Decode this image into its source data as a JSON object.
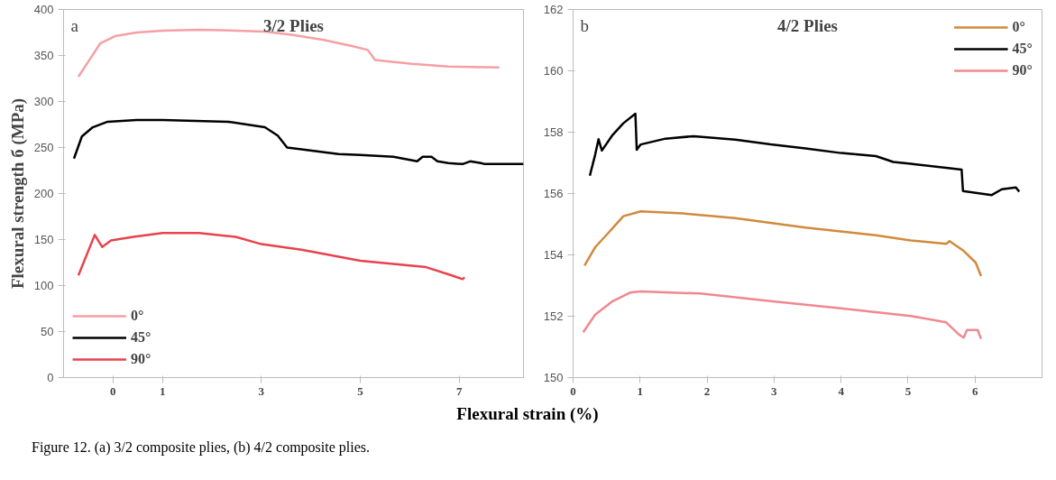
{
  "chart_data": [
    {
      "type": "line",
      "title": "3/2 Plies",
      "ylabel": "Flexural strength б (MPa)",
      "xlabel": "Flexural strain (%)",
      "annotations": [
        "a"
      ],
      "xlim": [
        -1,
        8.3
      ],
      "xticks": [
        0,
        1,
        3,
        5,
        7
      ],
      "ylim": [
        0,
        400
      ],
      "yticks": [
        0,
        50,
        100,
        150,
        200,
        250,
        300,
        350,
        400
      ],
      "legend": "bottom left",
      "series": [
        {
          "name": "0°",
          "color": "#f4a0a4",
          "x": [
            -0.7,
            -0.48,
            -0.26,
            0.04,
            0.48,
            1.0,
            1.74,
            2.48,
            3.07,
            3.67,
            4.26,
            4.85,
            5.15,
            5.3,
            6.04,
            6.78,
            7.81
          ],
          "values": [
            327,
            345,
            363,
            371,
            375,
            377,
            378,
            377,
            376,
            372,
            367,
            360,
            356,
            345,
            341,
            338,
            337
          ]
        },
        {
          "name": "45°",
          "color": "#000000",
          "x": [
            -0.79,
            -0.63,
            -0.41,
            -0.11,
            0.48,
            1.0,
            2.33,
            3.07,
            3.33,
            3.52,
            3.81,
            4.56,
            5.0,
            5.67,
            6.15,
            6.26,
            6.44,
            6.56,
            6.78,
            7.07,
            7.22,
            7.44,
            7.52,
            8.3
          ],
          "values": [
            238,
            262,
            272,
            278,
            280,
            280,
            278,
            272,
            263,
            250,
            248,
            243,
            242,
            240,
            235,
            240,
            240,
            235,
            233,
            232,
            235,
            233,
            232,
            232
          ]
        },
        {
          "name": "90°",
          "color": "#e8434e",
          "x": [
            -0.7,
            -0.37,
            -0.22,
            -0.04,
            0.41,
            1.0,
            1.74,
            2.48,
            3.0,
            3.81,
            5.0,
            6.33,
            6.85,
            7.07,
            7.11
          ],
          "values": [
            111,
            155,
            142,
            149,
            153,
            157,
            157,
            153,
            145,
            139,
            127,
            120,
            111,
            107,
            109
          ]
        }
      ]
    },
    {
      "type": "line",
      "title": "4/2 Plies",
      "annotations": [
        "b",
        "Figure 12. (a) 3/2 composite plies, (b) 4/2 composite plies."
      ],
      "xlim": [
        0,
        7
      ],
      "xticks": [
        0,
        1,
        2,
        3,
        4,
        5,
        6
      ],
      "ylim": [
        150,
        162
      ],
      "yticks": [
        150,
        152,
        154,
        156,
        158,
        160,
        162
      ],
      "legend": "top right",
      "series": [
        {
          "name": "0°",
          "color": "#d08a3c",
          "x": [
            0.17,
            0.33,
            0.54,
            0.75,
            1.01,
            1.64,
            2.42,
            3.47,
            4.52,
            5.04,
            5.57,
            5.62,
            5.83,
            6.01,
            6.09
          ],
          "values": [
            153.65,
            154.25,
            154.75,
            155.26,
            155.42,
            155.35,
            155.2,
            154.89,
            154.64,
            154.47,
            154.36,
            154.45,
            154.13,
            153.75,
            153.31
          ]
        },
        {
          "name": "45°",
          "color": "#000000",
          "x": [
            0.25,
            0.33,
            0.38,
            0.43,
            0.59,
            0.75,
            0.93,
            0.95,
            1.01,
            1.38,
            1.8,
            2.42,
            2.95,
            3.47,
            4.0,
            4.52,
            4.78,
            5.04,
            5.57,
            5.8,
            5.82,
            6.25,
            6.4,
            6.61,
            6.66
          ],
          "values": [
            156.58,
            157.27,
            157.77,
            157.4,
            157.91,
            158.29,
            158.6,
            157.43,
            157.6,
            157.79,
            157.87,
            157.76,
            157.6,
            157.47,
            157.32,
            157.22,
            157.03,
            156.97,
            156.84,
            156.78,
            156.08,
            155.95,
            156.14,
            156.2,
            156.06
          ]
        },
        {
          "name": "90°",
          "color": "#f08890",
          "x": [
            0.15,
            0.33,
            0.59,
            0.85,
            1.01,
            1.9,
            2.95,
            4.0,
            5.04,
            5.57,
            5.75,
            5.83,
            5.88,
            6.04,
            6.09
          ],
          "values": [
            151.48,
            152.05,
            152.49,
            152.77,
            152.81,
            152.74,
            152.49,
            152.26,
            152.01,
            151.8,
            151.42,
            151.3,
            151.55,
            151.55,
            151.26
          ]
        }
      ]
    }
  ]
}
